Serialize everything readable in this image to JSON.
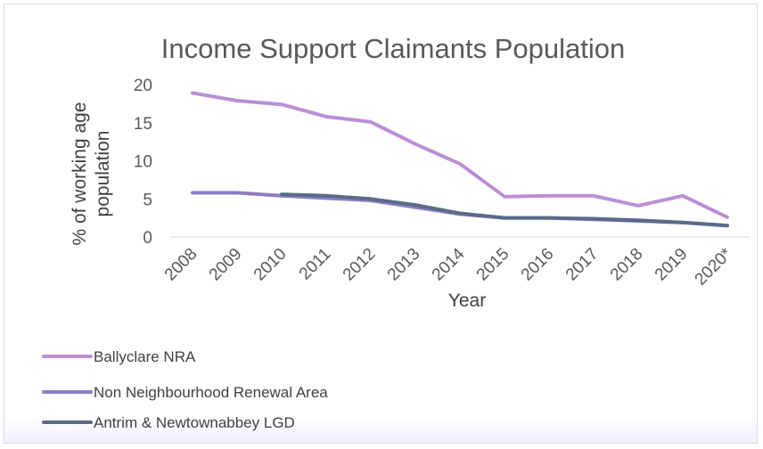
{
  "chart_data": {
    "type": "line",
    "title": "Income Support Claimants Population",
    "xlabel": "Year",
    "ylabel": "% of working age population",
    "ylabel_lines": [
      "% of working age",
      "population"
    ],
    "categories": [
      "2008",
      "2009",
      "2010",
      "2011",
      "2012",
      "2013",
      "2014",
      "2015",
      "2016",
      "2017",
      "2018",
      "2019",
      "2020*"
    ],
    "ylim": [
      0,
      20
    ],
    "yticks": [
      "0",
      "5",
      "10",
      "15",
      "20"
    ],
    "grid": false,
    "legend_position": "bottom-left",
    "series": [
      {
        "name": "Ballyclare NRA",
        "color": "#b98fd6",
        "values": [
          18.9,
          17.9,
          17.4,
          15.8,
          15.1,
          12.2,
          9.6,
          5.3,
          5.4,
          5.4,
          4.1,
          5.4,
          2.6
        ]
      },
      {
        "name": "Non Neighbourhood Renewal Area",
        "color": "#8e7cc3",
        "values": [
          5.8,
          5.8,
          5.4,
          5.1,
          4.8,
          3.9,
          3.0,
          2.5,
          2.5,
          2.3,
          2.1,
          1.9,
          1.5
        ]
      },
      {
        "name": "Antrim & Newtownabbey LGD",
        "color": "#5a6a8a",
        "values": [
          null,
          null,
          5.6,
          5.4,
          5.0,
          4.2,
          3.1,
          2.5,
          2.5,
          2.4,
          2.2,
          1.9,
          1.5
        ]
      }
    ]
  }
}
